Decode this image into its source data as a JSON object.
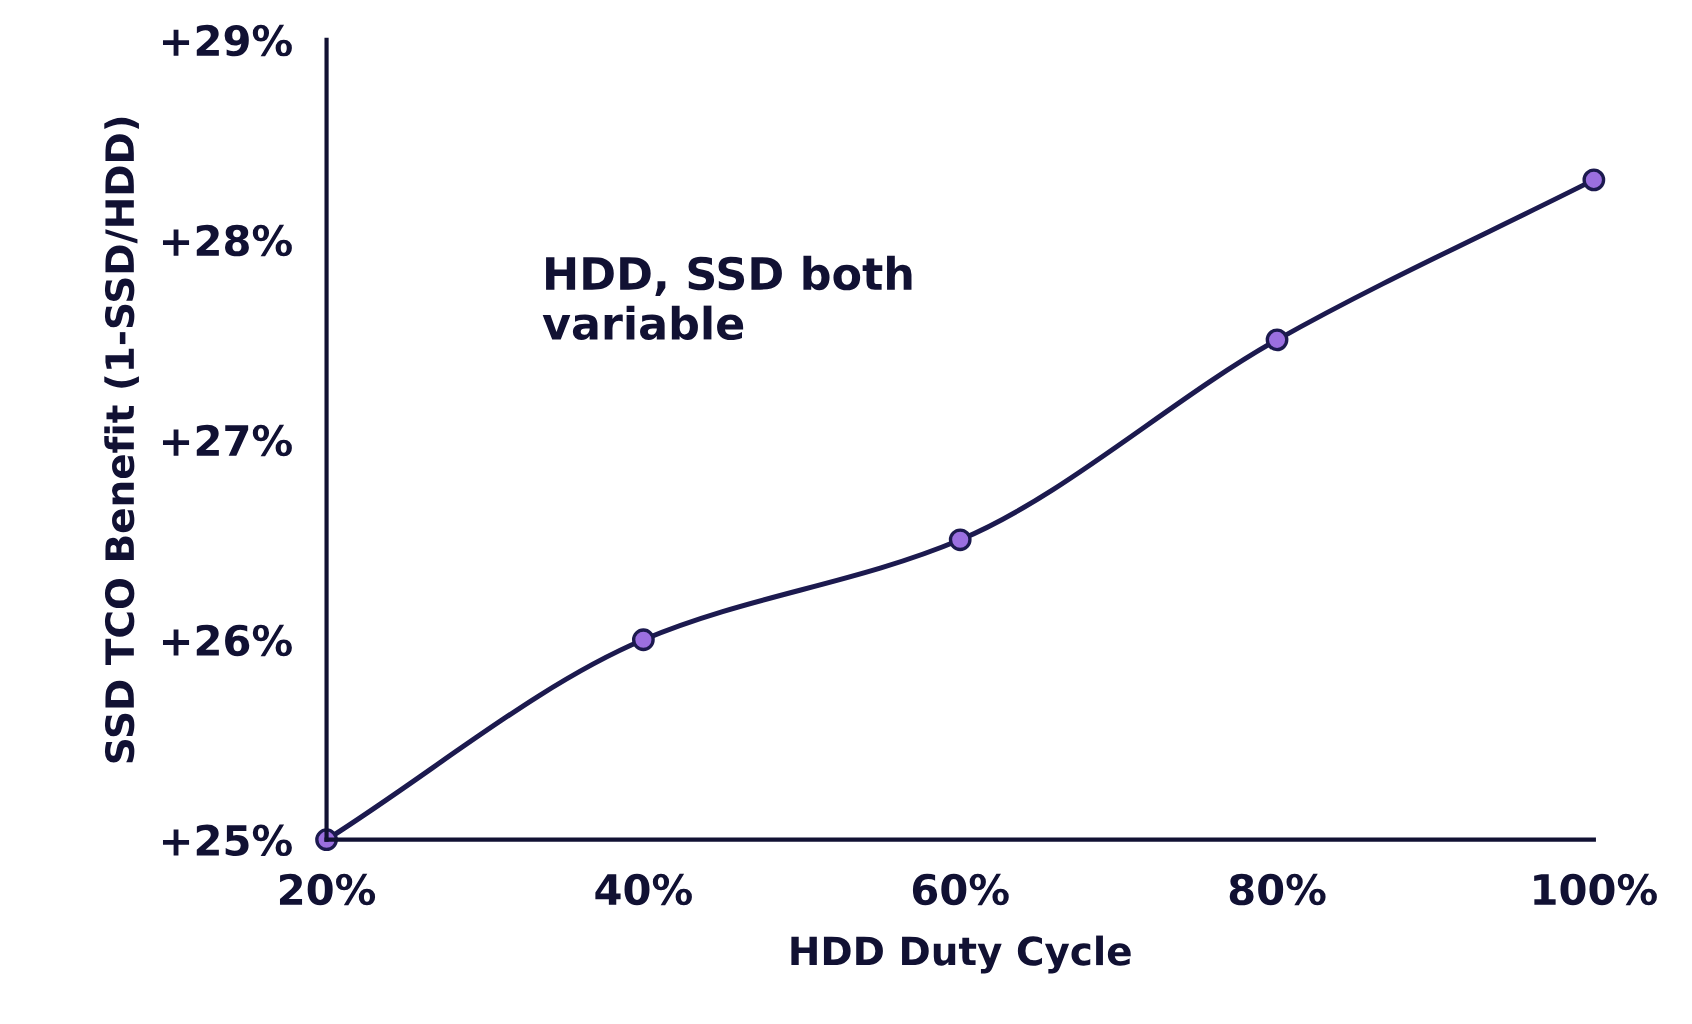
{
  "chart_data": {
    "type": "line",
    "xlabel": "HDD Duty Cycle",
    "ylabel": "SSD TCO Benefit (1-SSD/HDD)",
    "x": [
      20,
      40,
      60,
      80,
      100
    ],
    "series": [
      {
        "color": "#1c1a4f",
        "values": [
          25,
          26,
          26.5,
          27.5,
          28.3
        ]
      }
    ],
    "marker": "circle",
    "line_style": "solid",
    "grid": false,
    "legend": false,
    "xlim": [
      20,
      100
    ],
    "xticks": [
      {
        "value": 20,
        "label": "20%"
      },
      {
        "value": 40,
        "label": "40%"
      },
      {
        "value": 60,
        "label": "60%"
      },
      {
        "value": 80,
        "label": "80%"
      },
      {
        "value": 100,
        "label": "100%"
      }
    ],
    "ylim": [
      25,
      29
    ],
    "yticks": [
      {
        "value": 25,
        "label": "+25%"
      },
      {
        "value": 26,
        "label": "+26%"
      },
      {
        "value": 27,
        "label": "+27%"
      },
      {
        "value": 28,
        "label": "+28%"
      },
      {
        "value": 29,
        "label": "+29%"
      }
    ],
    "annotations": [
      "HDD, SSD both\nvariable"
    ]
  }
}
